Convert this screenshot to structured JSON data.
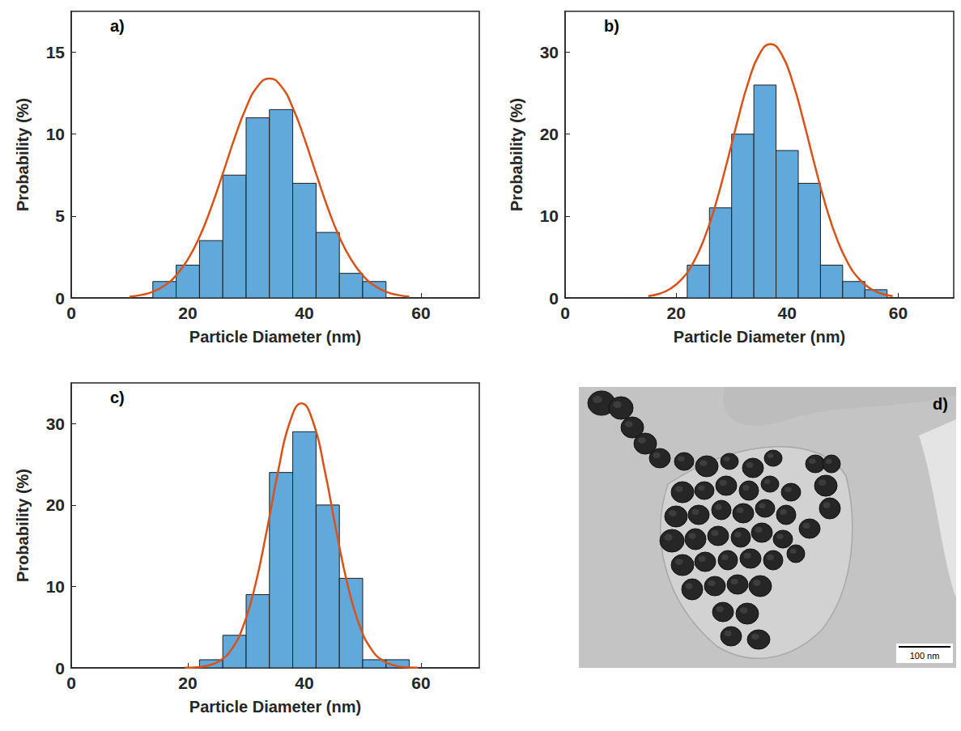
{
  "chart_data": [
    {
      "type": "histogram",
      "title": "a)",
      "xlabel": "Particle Diameter (nm)",
      "ylabel": "Probability (%)",
      "xlim": [
        0,
        70
      ],
      "xticks": [
        0,
        20,
        40,
        60
      ],
      "ylim": [
        0,
        17.5
      ],
      "yticks": [
        0,
        5,
        10,
        15
      ],
      "grid": false,
      "series": [
        {
          "type": "bar",
          "color": "#62a9db",
          "bins": [
            14,
            18,
            22,
            26,
            30,
            34,
            38,
            42,
            46,
            50,
            54
          ],
          "values": [
            1,
            2,
            3.5,
            7.5,
            11,
            11.5,
            7,
            4,
            1.5,
            1
          ]
        },
        {
          "type": "line",
          "color": "#d95319",
          "x": [
            10,
            12,
            14,
            16,
            18,
            20,
            22,
            24,
            26,
            28,
            30,
            32,
            34,
            36,
            38,
            40,
            42,
            44,
            46,
            48,
            50,
            52,
            54,
            56,
            58
          ],
          "values": [
            0.08,
            0.18,
            0.38,
            0.75,
            1.38,
            2.35,
            3.72,
            5.51,
            7.59,
            9.73,
            11.62,
            12.93,
            13.4,
            12.93,
            11.62,
            9.73,
            7.59,
            5.51,
            3.72,
            2.35,
            1.38,
            0.75,
            0.38,
            0.18,
            0.08
          ]
        }
      ]
    },
    {
      "type": "histogram",
      "title": "b)",
      "xlabel": "Particle Diameter (nm)",
      "ylabel": "Probability (%)",
      "xlim": [
        0,
        70
      ],
      "xticks": [
        0,
        20,
        40,
        60
      ],
      "ylim": [
        0,
        35
      ],
      "yticks": [
        0,
        10,
        20,
        30
      ],
      "grid": false,
      "series": [
        {
          "type": "bar",
          "color": "#62a9db",
          "bins": [
            22,
            26,
            30,
            34,
            38,
            42,
            46,
            50,
            54,
            58
          ],
          "values": [
            4,
            11,
            20,
            26,
            18,
            14,
            4,
            2,
            1
          ]
        },
        {
          "type": "line",
          "color": "#d95319",
          "x": [
            15,
            17,
            19,
            21,
            23,
            25,
            27,
            29,
            31,
            33,
            35,
            37,
            39,
            41,
            43,
            45,
            47,
            49,
            51,
            53,
            55,
            57,
            59
          ],
          "values": [
            0.22,
            0.52,
            1.14,
            2.28,
            4.2,
            7.13,
            11.17,
            16.14,
            21.47,
            26.33,
            29.76,
            31,
            29.76,
            26.33,
            21.47,
            16.14,
            11.17,
            7.13,
            4.2,
            2.28,
            1.14,
            0.52,
            0.22
          ]
        }
      ]
    },
    {
      "type": "histogram",
      "title": "c)",
      "xlabel": "Particle Diameter (nm)",
      "ylabel": "Probability (%)",
      "xlim": [
        0,
        70
      ],
      "xticks": [
        0,
        20,
        40,
        60
      ],
      "ylim": [
        0,
        35
      ],
      "yticks": [
        0,
        10,
        20,
        30
      ],
      "grid": false,
      "series": [
        {
          "type": "bar",
          "color": "#62a9db",
          "bins": [
            22,
            26,
            30,
            34,
            38,
            42,
            46,
            50,
            54,
            58
          ],
          "values": [
            1,
            4,
            9,
            24,
            29,
            20,
            11,
            1,
            1
          ]
        },
        {
          "type": "line",
          "color": "#d95319",
          "x": [
            19.5,
            21.5,
            23.5,
            25.5,
            27.5,
            29.5,
            31.5,
            33.5,
            35.5,
            37.5,
            39.5,
            41.5,
            43.5,
            45.5,
            47.5,
            49.5,
            51.5,
            53.5,
            55.5,
            57.5,
            59.5
          ],
          "values": [
            0.02,
            0.08,
            0.29,
            0.87,
            2.27,
            5.12,
            9.95,
            16.7,
            24.18,
            30.18,
            32.5,
            30.18,
            24.18,
            16.7,
            9.95,
            5.12,
            2.27,
            0.87,
            0.29,
            0.08,
            0.02
          ]
        }
      ]
    },
    {
      "type": "image",
      "title": "d)",
      "annotations": [
        "100 nm"
      ]
    }
  ]
}
